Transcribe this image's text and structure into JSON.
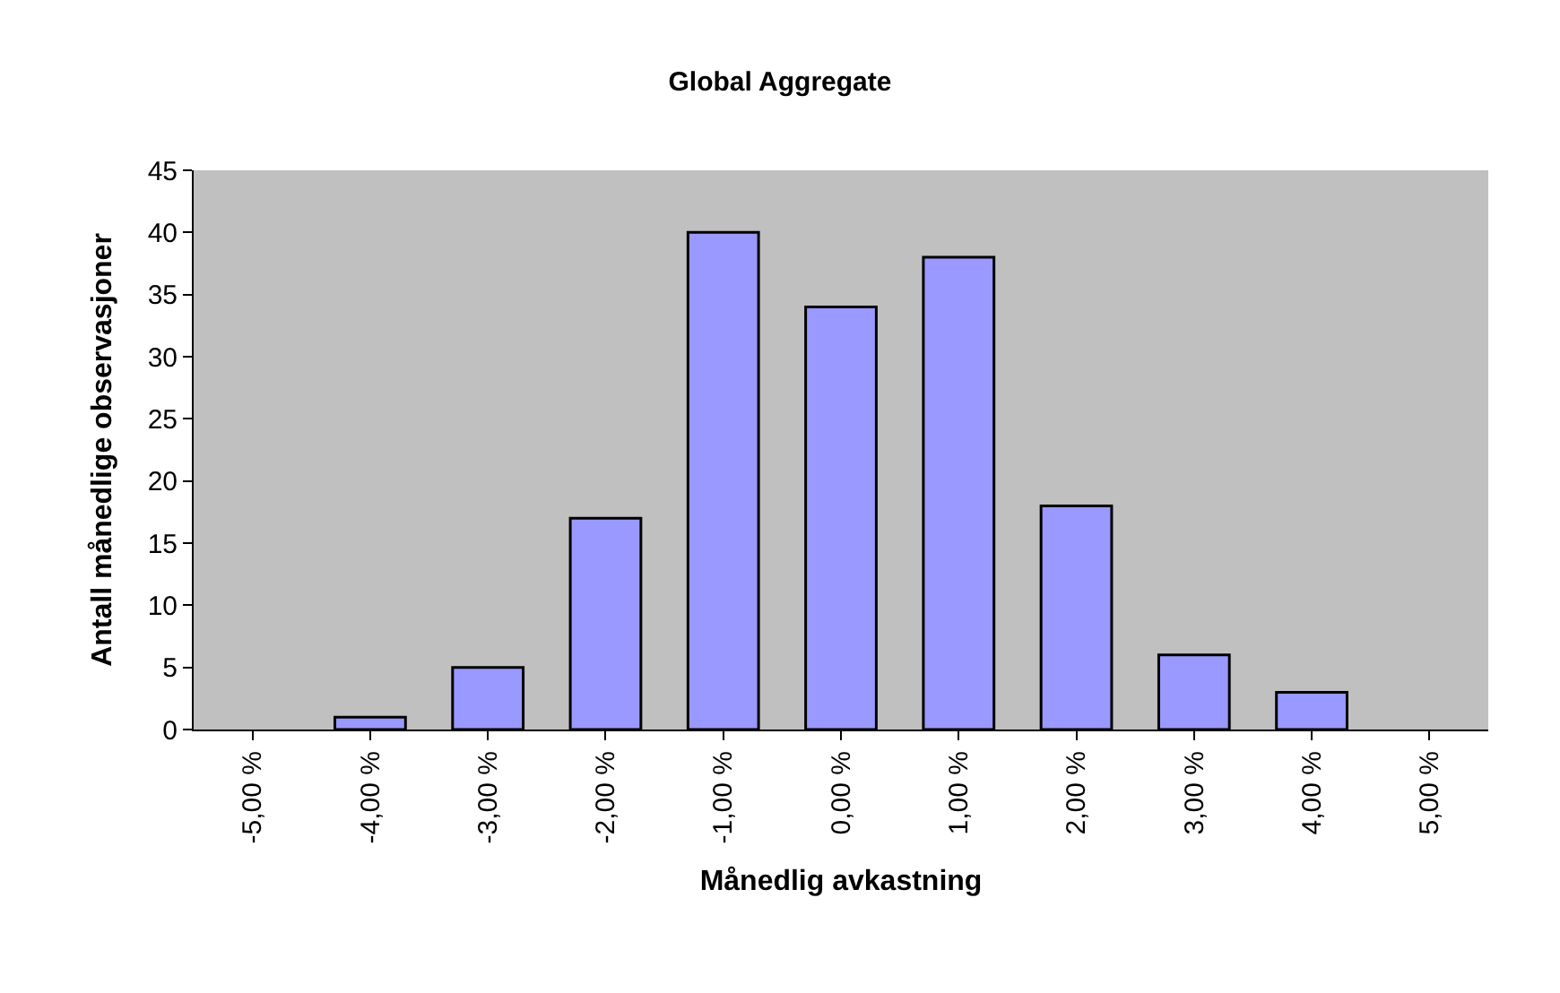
{
  "chart_data": {
    "type": "bar",
    "title": "Global Aggregate",
    "xlabel": "Månedlig avkastning",
    "ylabel": "Antall månedlige observasjoner",
    "categories": [
      "-5,00 %",
      "-4,00 %",
      "-3,00 %",
      "-2,00 %",
      "-1,00 %",
      "0,00 %",
      "1,00 %",
      "2,00 %",
      "3,00 %",
      "4,00 %",
      "5,00 %"
    ],
    "values": [
      0,
      1,
      5,
      17,
      40,
      34,
      38,
      18,
      6,
      3,
      0
    ],
    "color": "#9999ff",
    "ylim": [
      0,
      45
    ],
    "yticks": [
      0,
      5,
      10,
      15,
      20,
      25,
      30,
      35,
      40,
      45
    ]
  }
}
